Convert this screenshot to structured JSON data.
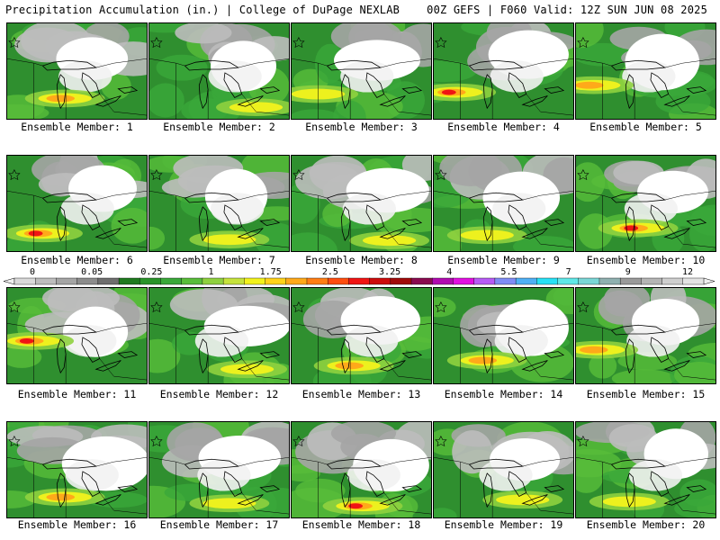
{
  "header": {
    "left_title": "Precipitation Accumulation (in.) | College of DuPage NEXLAB",
    "right_title": "00Z GEFS | F060 Valid: 12Z SUN JUN 08 2025"
  },
  "colorbar": {
    "tick_labels": [
      "0",
      "0.05",
      "0.25",
      "1",
      "1.75",
      "2.5",
      "3.25",
      "4",
      "5.5",
      "7",
      "9",
      "12"
    ],
    "colors": [
      "#d9d9d9",
      "#bdbdbd",
      "#a5a5a5",
      "#8c8c8c",
      "#6e6e6e",
      "#1f7a1f",
      "#2a932a",
      "#3aa83a",
      "#58bd3a",
      "#8fd13f",
      "#c6e33c",
      "#f2f21c",
      "#ffd21a",
      "#ffa91a",
      "#ff7e14",
      "#ff4d10",
      "#f01414",
      "#cc0c0c",
      "#a00a0a",
      "#8a0a50",
      "#b00ab0",
      "#e010e0",
      "#b75bf5",
      "#7f8cf5",
      "#4fb0f5",
      "#28e0f5",
      "#5fe8e8",
      "#7ad6d6",
      "#8fb0b0",
      "#9a9a9a",
      "#b5b5b5",
      "#cfcfcf",
      "#e3e3e3"
    ]
  },
  "members": [
    {
      "label": "Ensemble Member: 1"
    },
    {
      "label": "Ensemble Member: 2"
    },
    {
      "label": "Ensemble Member: 3"
    },
    {
      "label": "Ensemble Member: 4"
    },
    {
      "label": "Ensemble Member: 5"
    },
    {
      "label": "Ensemble Member: 6"
    },
    {
      "label": "Ensemble Member: 7"
    },
    {
      "label": "Ensemble Member: 8"
    },
    {
      "label": "Ensemble Member: 9"
    },
    {
      "label": "Ensemble Member: 10"
    },
    {
      "label": "Ensemble Member: 11"
    },
    {
      "label": "Ensemble Member: 12"
    },
    {
      "label": "Ensemble Member: 13"
    },
    {
      "label": "Ensemble Member: 14"
    },
    {
      "label": "Ensemble Member: 15"
    },
    {
      "label": "Ensemble Member: 16"
    },
    {
      "label": "Ensemble Member: 17"
    },
    {
      "label": "Ensemble Member: 18"
    },
    {
      "label": "Ensemble Member: 19"
    },
    {
      "label": "Ensemble Member: 20"
    }
  ]
}
